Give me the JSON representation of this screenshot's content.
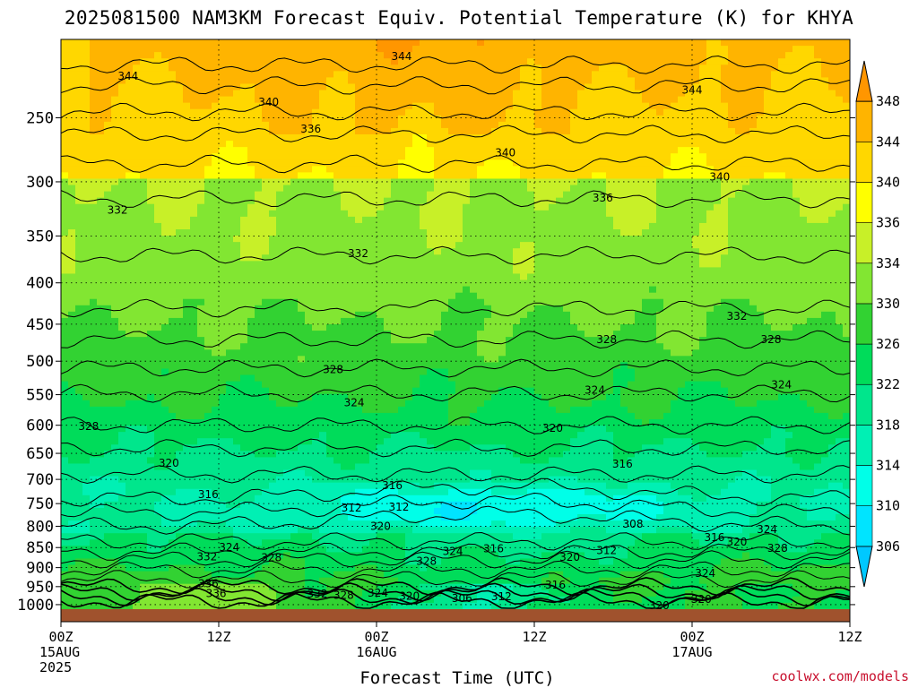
{
  "chart_data": {
    "type": "heatmap",
    "title": "2025081500 NAM3KM Forecast Equiv. Potential Temperature (K) for KHYA",
    "xlabel": "Forecast Time (UTC)",
    "ylabel": "",
    "x_ticks": [
      {
        "hours": 0,
        "lines": [
          "00Z",
          "15AUG",
          "2025"
        ]
      },
      {
        "hours": 12,
        "lines": [
          "12Z"
        ]
      },
      {
        "hours": 24,
        "lines": [
          "00Z",
          "16AUG"
        ]
      },
      {
        "hours": 36,
        "lines": [
          "12Z"
        ]
      },
      {
        "hours": 48,
        "lines": [
          "00Z",
          "17AUG"
        ]
      },
      {
        "hours": 60,
        "lines": [
          "12Z"
        ]
      }
    ],
    "xlim": [
      0,
      60
    ],
    "y_ticks": [
      250,
      300,
      350,
      400,
      450,
      500,
      550,
      600,
      650,
      700,
      750,
      800,
      850,
      900,
      950,
      1000
    ],
    "ylim": [
      200,
      1013
    ],
    "y_scale": "log-pressure",
    "colorbar": {
      "levels": [
        306,
        310,
        314,
        318,
        322,
        326,
        330,
        334,
        336,
        340,
        344,
        348
      ],
      "colors": [
        "#00c8ff",
        "#00e4ff",
        "#00ffe8",
        "#00f0b4",
        "#00e68c",
        "#00dc5a",
        "#32d232",
        "#82e632",
        "#c8f028",
        "#ffff00",
        "#ffd700",
        "#ffb400",
        "#ff9600"
      ]
    },
    "contour_labels": [
      {
        "text": "344",
        "x": 25.9,
        "y": 210
      },
      {
        "text": "344",
        "x": 5.1,
        "y": 222
      },
      {
        "text": "344",
        "x": 48.0,
        "y": 231
      },
      {
        "text": "340",
        "x": 15.8,
        "y": 239
      },
      {
        "text": "336",
        "x": 19.0,
        "y": 258
      },
      {
        "text": "340",
        "x": 33.8,
        "y": 276
      },
      {
        "text": "340",
        "x": 50.1,
        "y": 296
      },
      {
        "text": "336",
        "x": 41.2,
        "y": 314
      },
      {
        "text": "332",
        "x": 4.3,
        "y": 325
      },
      {
        "text": "332",
        "x": 22.6,
        "y": 368
      },
      {
        "text": "332",
        "x": 51.4,
        "y": 440
      },
      {
        "text": "328",
        "x": 41.5,
        "y": 470
      },
      {
        "text": "328",
        "x": 54.0,
        "y": 470
      },
      {
        "text": "328",
        "x": 20.7,
        "y": 512
      },
      {
        "text": "324",
        "x": 40.6,
        "y": 543
      },
      {
        "text": "324",
        "x": 54.8,
        "y": 535
      },
      {
        "text": "324",
        "x": 22.3,
        "y": 563
      },
      {
        "text": "328",
        "x": 2.1,
        "y": 602
      },
      {
        "text": "320",
        "x": 37.4,
        "y": 605
      },
      {
        "text": "320",
        "x": 8.2,
        "y": 668
      },
      {
        "text": "316",
        "x": 42.7,
        "y": 670
      },
      {
        "text": "316",
        "x": 25.2,
        "y": 712
      },
      {
        "text": "316",
        "x": 11.2,
        "y": 731
      },
      {
        "text": "312",
        "x": 22.1,
        "y": 759
      },
      {
        "text": "312",
        "x": 25.7,
        "y": 757
      },
      {
        "text": "308",
        "x": 43.5,
        "y": 795
      },
      {
        "text": "320",
        "x": 24.3,
        "y": 800
      },
      {
        "text": "316",
        "x": 49.7,
        "y": 826
      },
      {
        "text": "320",
        "x": 51.4,
        "y": 837
      },
      {
        "text": "324",
        "x": 53.7,
        "y": 807
      },
      {
        "text": "324",
        "x": 12.8,
        "y": 850
      },
      {
        "text": "324",
        "x": 29.8,
        "y": 859
      },
      {
        "text": "316",
        "x": 32.9,
        "y": 853
      },
      {
        "text": "312",
        "x": 41.5,
        "y": 857
      },
      {
        "text": "328",
        "x": 54.5,
        "y": 852
      },
      {
        "text": "332",
        "x": 11.1,
        "y": 873
      },
      {
        "text": "328",
        "x": 16.0,
        "y": 875
      },
      {
        "text": "328",
        "x": 27.8,
        "y": 884
      },
      {
        "text": "320",
        "x": 38.7,
        "y": 874
      },
      {
        "text": "324",
        "x": 49.0,
        "y": 915
      },
      {
        "text": "336",
        "x": 11.2,
        "y": 942
      },
      {
        "text": "316",
        "x": 37.6,
        "y": 945
      },
      {
        "text": "336",
        "x": 11.8,
        "y": 969
      },
      {
        "text": "332",
        "x": 19.5,
        "y": 970
      },
      {
        "text": "328",
        "x": 21.5,
        "y": 974
      },
      {
        "text": "324",
        "x": 24.1,
        "y": 968
      },
      {
        "text": "320",
        "x": 26.5,
        "y": 976
      },
      {
        "text": "312",
        "x": 33.5,
        "y": 978
      },
      {
        "text": "306",
        "x": 30.5,
        "y": 982
      },
      {
        "text": "320",
        "x": 48.7,
        "y": 985
      },
      {
        "text": "320",
        "x": 45.5,
        "y": 1003
      }
    ],
    "ground": "brown surface band below 1000 hPa"
  },
  "credit": "coolwx.com/models"
}
